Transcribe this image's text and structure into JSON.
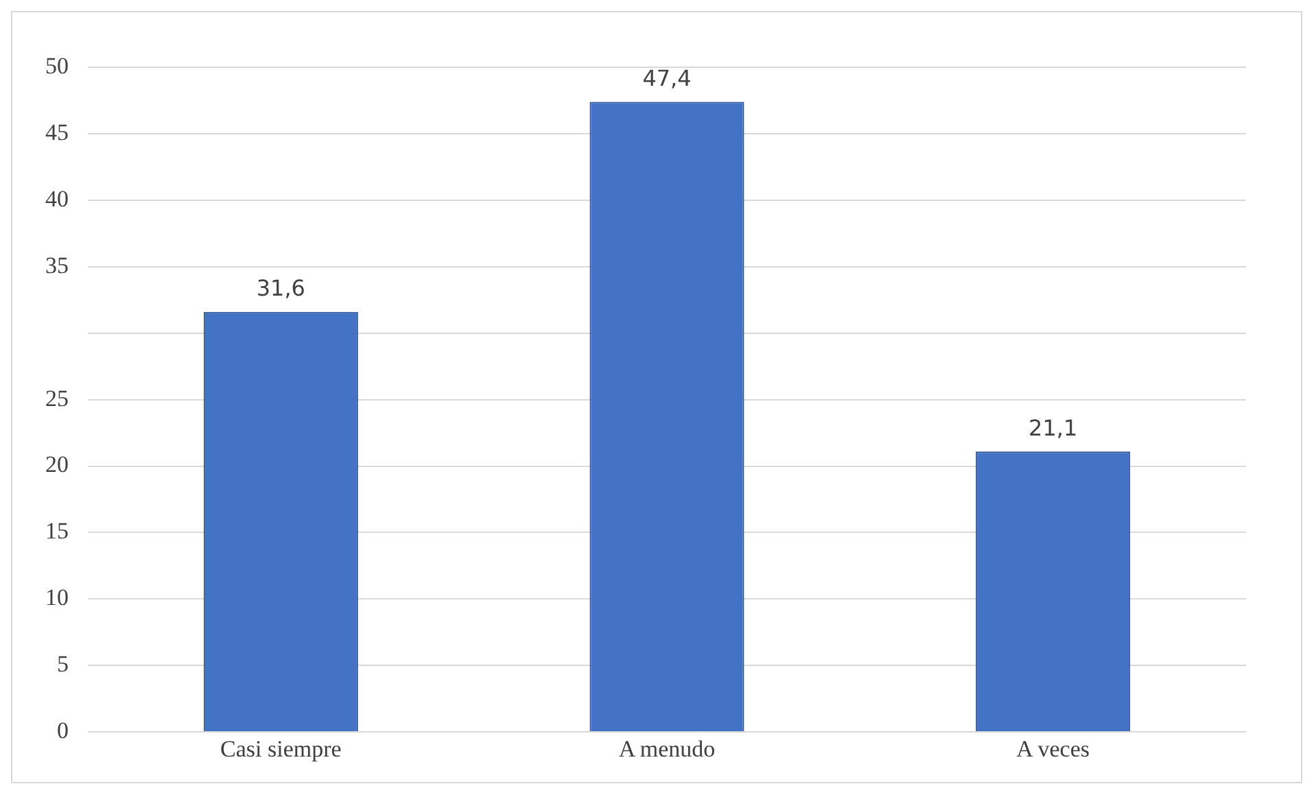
{
  "chart_data": {
    "type": "bar",
    "categories": [
      "Casi siempre",
      "A menudo",
      "A veces"
    ],
    "values": [
      31.6,
      47.4,
      21.1
    ],
    "value_labels": [
      "31,6",
      "47,4",
      "21,1"
    ],
    "color": "#4472c4",
    "ylim": [
      0,
      50
    ],
    "yticks": [
      0,
      5,
      10,
      15,
      20,
      25,
      {
        "value": 30,
        "label": null
      },
      35,
      40,
      45,
      50
    ],
    "grid": "y",
    "legend": false
  }
}
